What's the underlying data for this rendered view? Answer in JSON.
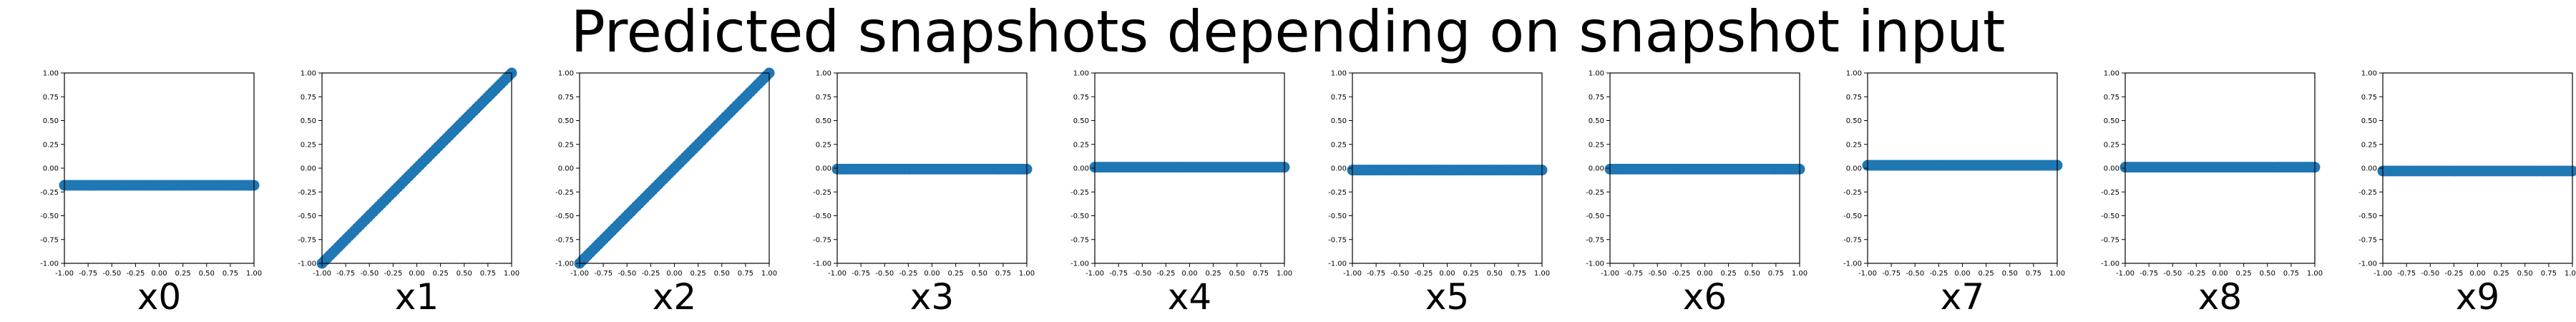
{
  "title": "Predicted snapshots depending on snapshot input",
  "chart_data": [
    {
      "type": "scatter",
      "xlabel": "x0",
      "xlim": [
        -1,
        1
      ],
      "ylim": [
        -1,
        1
      ],
      "series": [
        {
          "color": "#1f77b4",
          "points": [
            [
              -1,
              -0.18
            ],
            [
              1,
              -0.18
            ]
          ]
        }
      ]
    },
    {
      "type": "scatter",
      "xlabel": "x1",
      "xlim": [
        -1,
        1
      ],
      "ylim": [
        -1,
        1
      ],
      "series": [
        {
          "color": "#1f77b4",
          "points": [
            [
              -1,
              -1
            ],
            [
              1,
              1
            ]
          ]
        }
      ]
    },
    {
      "type": "scatter",
      "xlabel": "x2",
      "xlim": [
        -1,
        1
      ],
      "ylim": [
        -1,
        1
      ],
      "series": [
        {
          "color": "#1f77b4",
          "points": [
            [
              -1,
              -1
            ],
            [
              1,
              1
            ]
          ]
        }
      ]
    },
    {
      "type": "scatter",
      "xlabel": "x3",
      "xlim": [
        -1,
        1
      ],
      "ylim": [
        -1,
        1
      ],
      "series": [
        {
          "color": "#1f77b4",
          "points": [
            [
              -1,
              -0.01
            ],
            [
              1,
              -0.01
            ]
          ]
        }
      ]
    },
    {
      "type": "scatter",
      "xlabel": "x4",
      "xlim": [
        -1,
        1
      ],
      "ylim": [
        -1,
        1
      ],
      "series": [
        {
          "color": "#1f77b4",
          "points": [
            [
              -1,
              0.01
            ],
            [
              1,
              0.01
            ]
          ]
        }
      ]
    },
    {
      "type": "scatter",
      "xlabel": "x5",
      "xlim": [
        -1,
        1
      ],
      "ylim": [
        -1,
        1
      ],
      "series": [
        {
          "color": "#1f77b4",
          "points": [
            [
              -1,
              -0.02
            ],
            [
              1,
              -0.02
            ]
          ]
        }
      ]
    },
    {
      "type": "scatter",
      "xlabel": "x6",
      "xlim": [
        -1,
        1
      ],
      "ylim": [
        -1,
        1
      ],
      "series": [
        {
          "color": "#1f77b4",
          "points": [
            [
              -1,
              -0.01
            ],
            [
              1,
              -0.01
            ]
          ]
        }
      ]
    },
    {
      "type": "scatter",
      "xlabel": "x7",
      "xlim": [
        -1,
        1
      ],
      "ylim": [
        -1,
        1
      ],
      "series": [
        {
          "color": "#1f77b4",
          "points": [
            [
              -1,
              0.03
            ],
            [
              1,
              0.03
            ]
          ]
        }
      ]
    },
    {
      "type": "scatter",
      "xlabel": "x8",
      "xlim": [
        -1,
        1
      ],
      "ylim": [
        -1,
        1
      ],
      "series": [
        {
          "color": "#1f77b4",
          "points": [
            [
              -1,
              0.01
            ],
            [
              1,
              0.01
            ]
          ]
        }
      ]
    },
    {
      "type": "scatter",
      "xlabel": "x9",
      "xlim": [
        -1,
        1
      ],
      "ylim": [
        -1,
        1
      ],
      "series": [
        {
          "color": "#1f77b4",
          "points": [
            [
              -1,
              -0.03
            ],
            [
              1,
              -0.03
            ]
          ]
        }
      ]
    }
  ],
  "axes": {
    "xticks": [
      "-1.00",
      "-0.75",
      "-0.50",
      "-0.25",
      "0.00",
      "0.25",
      "0.50",
      "0.75",
      "1.00"
    ],
    "yticks": [
      "-1.00",
      "-0.75",
      "-0.50",
      "-0.25",
      "0.00",
      "0.25",
      "0.50",
      "0.75",
      "1.00"
    ]
  }
}
